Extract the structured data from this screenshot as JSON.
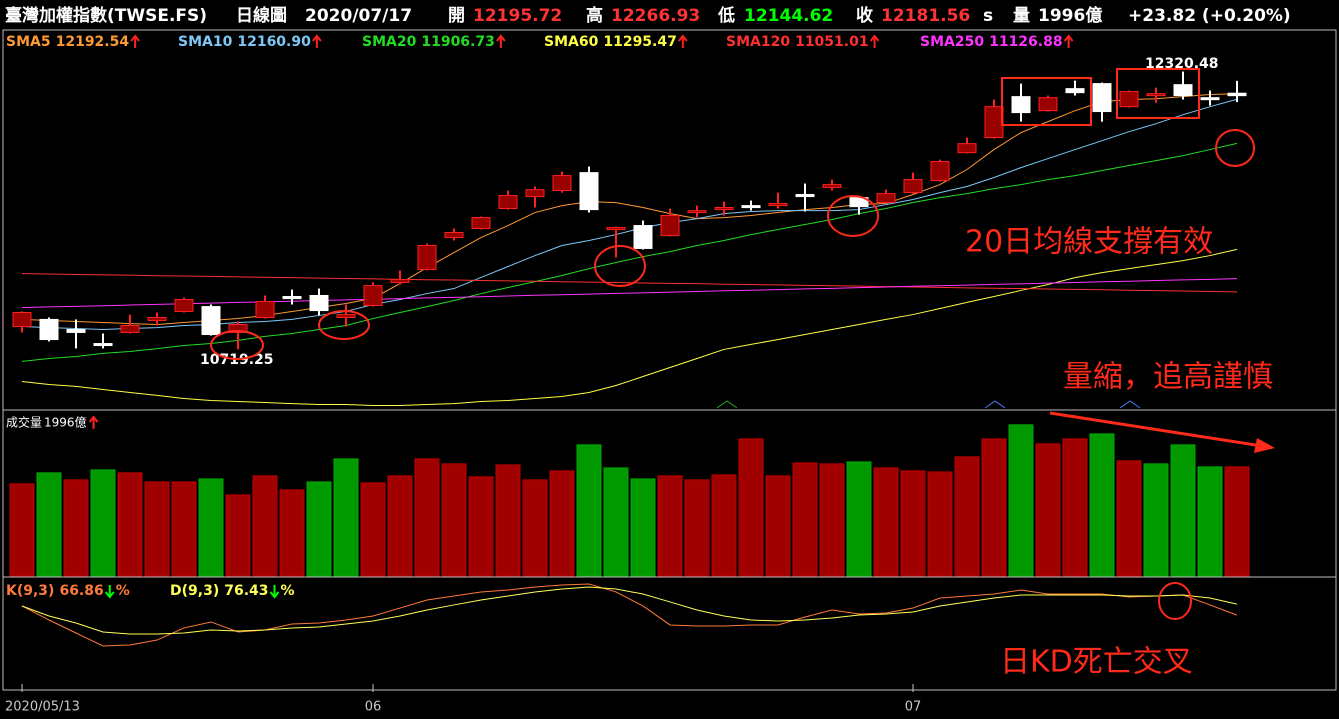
{
  "chart_data": [
    {
      "type": "candlestick",
      "categories": [
        "2020/05/13",
        null,
        null,
        null,
        null,
        null,
        null,
        null,
        null,
        null,
        null,
        null,
        null,
        "06",
        null,
        null,
        null,
        null,
        null,
        null,
        null,
        null,
        null,
        null,
        null,
        null,
        null,
        null,
        null,
        null,
        null,
        null,
        null,
        "07",
        null,
        null,
        null,
        null,
        null,
        null,
        null,
        null,
        null,
        null,
        null,
        null
      ],
      "open": [
        10851,
        10892,
        10834,
        10753,
        10817,
        10886,
        10938,
        10966,
        10817,
        10903,
        11024,
        11030,
        10903,
        10972,
        11105,
        11180,
        11364,
        11416,
        11531,
        11600,
        11635,
        11738,
        11410,
        11433,
        11375,
        11508,
        11525,
        11548,
        11548,
        11612,
        11652,
        11594,
        11566,
        11623,
        11692,
        11853,
        11940,
        12176,
        12095,
        12222,
        12251,
        12118,
        12182,
        12245,
        12170,
        12195.72
      ],
      "high": [
        10938,
        10903,
        10892,
        10811,
        10920,
        10932,
        11018,
        10978,
        10880,
        11030,
        11064,
        11070,
        10978,
        11105,
        11174,
        11329,
        11416,
        11485,
        11635,
        11658,
        11744,
        11773,
        11427,
        11462,
        11531,
        11548,
        11571,
        11577,
        11623,
        11675,
        11698,
        11606,
        11640,
        11738,
        11813,
        11940,
        12159,
        12251,
        12182,
        12268,
        12257,
        12211,
        12228,
        12320.48,
        12211,
        12266.93
      ],
      "low": [
        10817,
        10765,
        10725,
        10725,
        10811,
        10857,
        10932,
        10799,
        10719.25,
        10897,
        10978,
        10915,
        10851,
        10966,
        11093,
        11174,
        11347,
        11410,
        11525,
        11537,
        11623,
        11508,
        11249,
        11295,
        11370,
        11479,
        11491,
        11519,
        11531,
        11514,
        11635,
        11496,
        11560,
        11617,
        11686,
        11848,
        11934,
        12032,
        12090,
        12182,
        12032,
        12113,
        12141,
        12159,
        12124,
        12144.62
      ],
      "close": [
        10932,
        10776,
        10817,
        10742,
        10857,
        10903,
        11007,
        10805,
        10863,
        10995,
        11012,
        10943,
        10920,
        11087,
        11122,
        11318,
        11393,
        11479,
        11606,
        11640,
        11721,
        11525,
        11422,
        11301,
        11491,
        11519,
        11537,
        11537,
        11560,
        11600,
        11669,
        11542,
        11617,
        11698,
        11802,
        11905,
        12118,
        12084,
        12170,
        12199,
        12090,
        12205,
        12193,
        12182,
        12159,
        12181.56
      ],
      "up_color": "#990000",
      "down_color": "#ffffff",
      "series": [
        {
          "name": "SMA5",
          "color": "#ff9933",
          "values": [
            10892,
            10886,
            10880,
            10874,
            10868,
            10863,
            10874,
            10886,
            10897,
            10915,
            10938,
            10961,
            10984,
            11013,
            11099,
            11191,
            11277,
            11364,
            11433,
            11508,
            11548,
            11571,
            11565,
            11537,
            11502,
            11473,
            11479,
            11491,
            11508,
            11525,
            11537,
            11554,
            11560,
            11612,
            11669,
            11756,
            11871,
            11969,
            12032,
            12095,
            12147,
            12159,
            12164,
            12176,
            12188,
            12192.54
          ]
        },
        {
          "name": "SMA10",
          "color": "#7cc8f8",
          "values": [
            10851,
            10845,
            10840,
            10834,
            10840,
            10845,
            10857,
            10863,
            10874,
            10880,
            10892,
            10915,
            10938,
            10978,
            11007,
            11041,
            11070,
            11134,
            11197,
            11260,
            11318,
            11347,
            11381,
            11421,
            11450,
            11473,
            11502,
            11514,
            11519,
            11519,
            11519,
            11525,
            11554,
            11583,
            11623,
            11658,
            11710,
            11767,
            11819,
            11871,
            11922,
            11974,
            12020,
            12072,
            12118,
            12160.9
          ],
          "value_labels": [
            null,
            null,
            null,
            null,
            null,
            null,
            null,
            null,
            null,
            null,
            null,
            null,
            null,
            null,
            null,
            null,
            null,
            null,
            null,
            null,
            null,
            null,
            null,
            null,
            null,
            null,
            null,
            null,
            null,
            null,
            null,
            null,
            null,
            null,
            null,
            null,
            null,
            null,
            null,
            null,
            null,
            null,
            null,
            null,
            null,
            "12160.90"
          ]
        },
        {
          "name": "SMA20",
          "color": "#22dd22",
          "values": [
            10650,
            10667,
            10678,
            10696,
            10707,
            10724,
            10742,
            10753,
            10771,
            10794,
            10811,
            10834,
            10857,
            10897,
            10932,
            10966,
            11001,
            11041,
            11076,
            11110,
            11145,
            11185,
            11220,
            11254,
            11283,
            11318,
            11347,
            11381,
            11410,
            11439,
            11468,
            11502,
            11531,
            11566,
            11594,
            11617,
            11646,
            11669,
            11698,
            11721,
            11750,
            11779,
            11807,
            11836,
            11871,
            11906.73
          ]
        },
        {
          "name": "SMA60",
          "color": "#ffff44",
          "values": [
            10534,
            10517,
            10506,
            10488,
            10471,
            10454,
            10436,
            10425,
            10419,
            10413,
            10407,
            10402,
            10402,
            10396,
            10396,
            10402,
            10407,
            10419,
            10425,
            10436,
            10448,
            10471,
            10511,
            10563,
            10615,
            10667,
            10719,
            10748,
            10776,
            10805,
            10834,
            10863,
            10892,
            10920,
            10955,
            10990,
            11024,
            11059,
            11093,
            11133,
            11162,
            11185,
            11208,
            11231,
            11260,
            11295.47
          ]
        },
        {
          "name": "SMA120",
          "color": "#ff3030",
          "values": [
            11156,
            11154,
            11151,
            11149,
            11147,
            11144,
            11142,
            11140,
            11137,
            11135,
            11133,
            11130,
            11128,
            11126,
            11123,
            11121,
            11119,
            11116,
            11114,
            11112,
            11109,
            11107,
            11105,
            11102,
            11100,
            11098,
            11095,
            11093,
            11091,
            11088,
            11086,
            11084,
            11081,
            11079,
            11077,
            11074,
            11072,
            11070,
            11067,
            11065,
            11063,
            11060,
            11058,
            11056,
            11053,
            11051.01
          ]
        },
        {
          "name": "SMA250",
          "color": "#ff33ff",
          "values": [
            10960,
            10964,
            10967,
            10971,
            10975,
            10979,
            10982,
            10986,
            10990,
            10993,
            10997,
            11001,
            11005,
            11008,
            11012,
            11016,
            11019,
            11023,
            11027,
            11031,
            11034,
            11038,
            11042,
            11045,
            11049,
            11053,
            11057,
            11060,
            11064,
            11068,
            11071,
            11075,
            11079,
            11083,
            11086,
            11090,
            11094,
            11097,
            11101,
            11105,
            11109,
            11112,
            11116,
            11120,
            11123,
            11126.88
          ]
        }
      ],
      "ylim": [
        10370,
        12560
      ],
      "annotations": [
        "20日均線支撐有效",
        "量縮，追高謹慎"
      ]
    },
    {
      "type": "bar",
      "title": "成交量",
      "values": [
        1685,
        1886,
        1758,
        1941,
        1886,
        1721,
        1721,
        1776,
        1483,
        1831,
        1575,
        1721,
        2142,
        1703,
        1831,
        2142,
        2051,
        1813,
        2032,
        1758,
        1923,
        2399,
        1977,
        1776,
        1831,
        1758,
        1849,
        2508,
        1831,
        2069,
        2051,
        2087,
        1977,
        1923,
        1904,
        2179,
        2508,
        2765,
        2417,
        2508,
        2600,
        2106,
        2051,
        2399,
        1996,
        1996
      ],
      "value_labels": [
        null,
        null,
        null,
        null,
        null,
        null,
        null,
        null,
        null,
        null,
        null,
        null,
        null,
        null,
        null,
        null,
        null,
        null,
        null,
        null,
        null,
        null,
        null,
        null,
        null,
        null,
        null,
        null,
        null,
        null,
        null,
        null,
        null,
        null,
        null,
        null,
        null,
        null,
        null,
        null,
        null,
        null,
        null,
        null,
        null,
        "1996億"
      ],
      "colors": [
        "#a00000",
        "#009900",
        "#a00000",
        "#009900",
        "#a00000",
        "#a00000",
        "#a00000",
        "#009900",
        "#a00000",
        "#a00000",
        "#a00000",
        "#009900",
        "#009900",
        "#a00000",
        "#a00000",
        "#a00000",
        "#a00000",
        "#a00000",
        "#a00000",
        "#a00000",
        "#a00000",
        "#009900",
        "#009900",
        "#009900",
        "#a00000",
        "#a00000",
        "#a00000",
        "#a00000",
        "#a00000",
        "#a00000",
        "#a00000",
        "#009900",
        "#a00000",
        "#a00000",
        "#a00000",
        "#a00000",
        "#a00000",
        "#009900",
        "#a00000",
        "#a00000",
        "#009900",
        "#a00000",
        "#009900",
        "#009900",
        "#009900",
        "#a00000"
      ],
      "ylim": [
        0,
        3000
      ]
    },
    {
      "type": "line",
      "series": [
        {
          "name": "K(9,3)",
          "color": "#ff7a3a",
          "values": [
            74.8,
            62.6,
            51.3,
            40.0,
            40.9,
            45.2,
            55.7,
            60.9,
            52.2,
            53.9,
            59.1,
            60.0,
            62.6,
            66.1,
            73.0,
            80.0,
            83.5,
            87.0,
            88.7,
            91.3,
            93.0,
            93.9,
            87.0,
            74.8,
            58.3,
            57.4,
            57.4,
            58.3,
            58.3,
            65.2,
            71.3,
            67.8,
            68.7,
            73.0,
            81.7,
            83.5,
            85.2,
            88.7,
            85.2,
            85.2,
            85.2,
            82.6,
            83.5,
            84.3,
            75.7,
            66.86
          ]
        },
        {
          "name": "D(9,3)",
          "color": "#ffff55",
          "values": [
            74.8,
            66.1,
            60.0,
            52.2,
            50.4,
            50.4,
            51.3,
            53.9,
            53.0,
            53.9,
            55.7,
            56.5,
            59.1,
            61.7,
            66.1,
            71.3,
            75.7,
            80.0,
            83.5,
            87.0,
            89.6,
            91.3,
            89.6,
            85.2,
            78.3,
            71.3,
            66.1,
            62.6,
            61.7,
            62.6,
            64.3,
            67.0,
            67.8,
            69.6,
            74.8,
            78.3,
            81.7,
            84.3,
            84.3,
            84.3,
            84.3,
            83.5,
            83.5,
            84.3,
            81.7,
            76.43
          ]
        }
      ],
      "ylim": [
        0,
        100
      ],
      "unit": "%",
      "annotations": [
        "日KD死亡交叉"
      ]
    }
  ],
  "header": {
    "title": "臺灣加權指數(TWSE.FS)",
    "period": "日線圖",
    "date": "2020/07/17",
    "open_label": "開",
    "high_label": "高",
    "low_label": "低",
    "close_label": "收",
    "close_flag": "s",
    "volume_label": "量",
    "change": "+23.82 (+0.20%)"
  }
}
